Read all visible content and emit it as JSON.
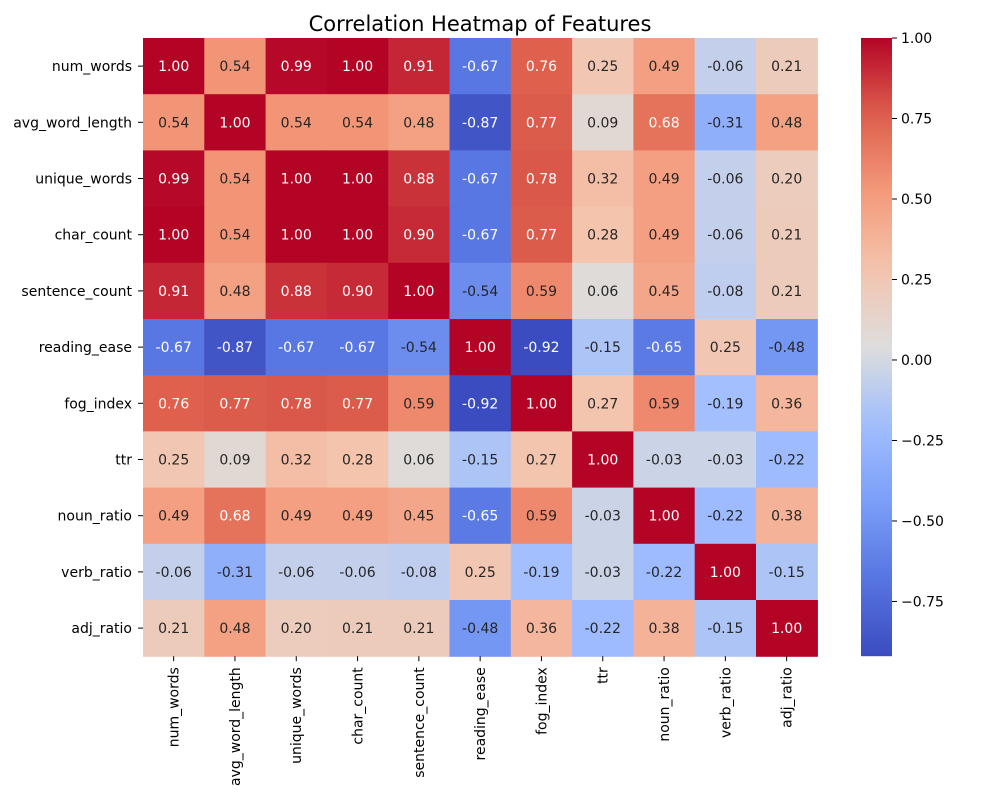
{
  "chart_data": {
    "type": "heatmap",
    "title": "Correlation Heatmap of Features",
    "xlabel": "",
    "ylabel": "",
    "categories": [
      "num_words",
      "avg_word_length",
      "unique_words",
      "char_count",
      "sentence_count",
      "reading_ease",
      "fog_index",
      "ttr",
      "noun_ratio",
      "verb_ratio",
      "adj_ratio"
    ],
    "values": [
      [
        1.0,
        0.54,
        0.99,
        1.0,
        0.91,
        -0.67,
        0.76,
        0.25,
        0.49,
        -0.06,
        0.21
      ],
      [
        0.54,
        1.0,
        0.54,
        0.54,
        0.48,
        -0.87,
        0.77,
        0.09,
        0.68,
        -0.31,
        0.48
      ],
      [
        0.99,
        0.54,
        1.0,
        1.0,
        0.88,
        -0.67,
        0.78,
        0.32,
        0.49,
        -0.06,
        0.2
      ],
      [
        1.0,
        0.54,
        1.0,
        1.0,
        0.9,
        -0.67,
        0.77,
        0.28,
        0.49,
        -0.06,
        0.21
      ],
      [
        0.91,
        0.48,
        0.88,
        0.9,
        1.0,
        -0.54,
        0.59,
        0.06,
        0.45,
        -0.08,
        0.21
      ],
      [
        -0.67,
        -0.87,
        -0.67,
        -0.67,
        -0.54,
        1.0,
        -0.92,
        -0.15,
        -0.65,
        0.25,
        -0.48
      ],
      [
        0.76,
        0.77,
        0.78,
        0.77,
        0.59,
        -0.92,
        1.0,
        0.27,
        0.59,
        -0.19,
        0.36
      ],
      [
        0.25,
        0.09,
        0.32,
        0.28,
        0.06,
        -0.15,
        0.27,
        1.0,
        -0.03,
        -0.03,
        -0.22
      ],
      [
        0.49,
        0.68,
        0.49,
        0.49,
        0.45,
        -0.65,
        0.59,
        -0.03,
        1.0,
        -0.22,
        0.38
      ],
      [
        -0.06,
        -0.31,
        -0.06,
        -0.06,
        -0.08,
        0.25,
        -0.19,
        -0.03,
        -0.22,
        1.0,
        -0.15
      ],
      [
        0.21,
        0.48,
        0.2,
        0.21,
        0.21,
        -0.48,
        0.36,
        -0.22,
        0.38,
        -0.15,
        1.0
      ]
    ],
    "colormap": "coolwarm",
    "value_range": [
      -0.92,
      1.0
    ],
    "colorbar_ticks": [
      "1.00",
      "0.75",
      "0.50",
      "0.25",
      "0.00",
      "−0.25",
      "−0.50",
      "−0.75"
    ],
    "colorbar_tick_values": [
      1.0,
      0.75,
      0.5,
      0.25,
      0.0,
      -0.25,
      -0.5,
      -0.75
    ],
    "annotation_format": "2 decimals",
    "grid": false,
    "legend": "colorbar-right"
  }
}
